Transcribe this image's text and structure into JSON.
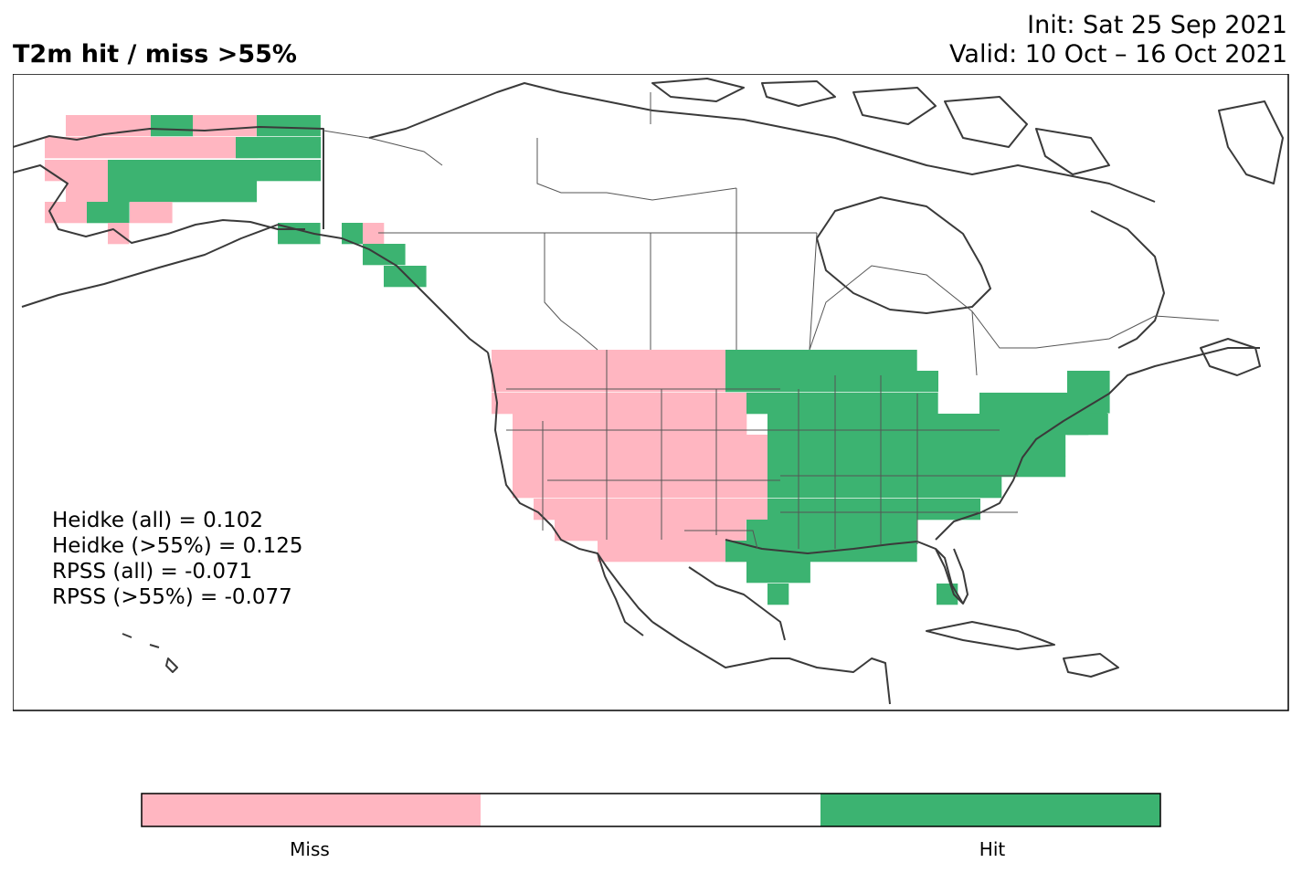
{
  "header": {
    "title": "T2m hit / miss  >55%",
    "init": "Init: Sat 25 Sep 2021",
    "valid": "Valid: 10 Oct – 16 Oct 2021"
  },
  "stats": [
    "Heidke (all) = 0.102",
    "Heidke (>55%) = 0.125",
    "RPSS (all) = -0.071",
    "RPSS (>55%) = -0.077"
  ],
  "colorbar": {
    "labels": [
      "Miss",
      "Hit"
    ],
    "colors": [
      "#ffb6c1",
      "#ffffff",
      "#3cb371"
    ]
  },
  "colors": {
    "miss": "#ffb6c1",
    "hit": "#3cb371",
    "coast": "#333333"
  }
}
